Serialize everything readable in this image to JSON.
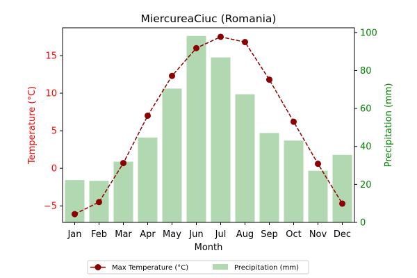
{
  "chart_data": {
    "type": "bar+line",
    "title": "MiercureaCiuc (Romania)",
    "xlabel": "Month",
    "ylabel_left": "Temperature (°C)",
    "ylabel_right": "Precipitation (mm)",
    "categories": [
      "Jan",
      "Feb",
      "Mar",
      "Apr",
      "May",
      "Jun",
      "Jul",
      "Aug",
      "Sep",
      "Oct",
      "Nov",
      "Dec"
    ],
    "left_axis": {
      "ylim": [
        -7.2,
        18.7
      ],
      "ticks": [
        -5,
        0,
        5,
        10,
        15
      ],
      "color": "#ff0000"
    },
    "right_axis": {
      "ylim": [
        0,
        102.5
      ],
      "ticks": [
        0,
        20,
        40,
        60,
        80,
        100
      ],
      "color": "#008000"
    },
    "series": [
      {
        "name": "Max Temperature (°C)",
        "kind": "line",
        "axis": "left",
        "color": "#8b0000",
        "style": "dashed",
        "marker": "circle",
        "values": [
          -6.1,
          -4.5,
          0.7,
          7.0,
          12.3,
          16.0,
          17.5,
          16.8,
          11.8,
          6.2,
          0.6,
          -4.7
        ]
      },
      {
        "name": "Precipitation (mm)",
        "kind": "bar",
        "axis": "right",
        "color": "#b2d8b2",
        "values": [
          22.3,
          21.9,
          32.0,
          44.7,
          70.5,
          98.2,
          86.9,
          67.5,
          47.1,
          43.1,
          27.2,
          35.6
        ]
      }
    ],
    "legend_placement": "bottom-center",
    "grid": false
  }
}
